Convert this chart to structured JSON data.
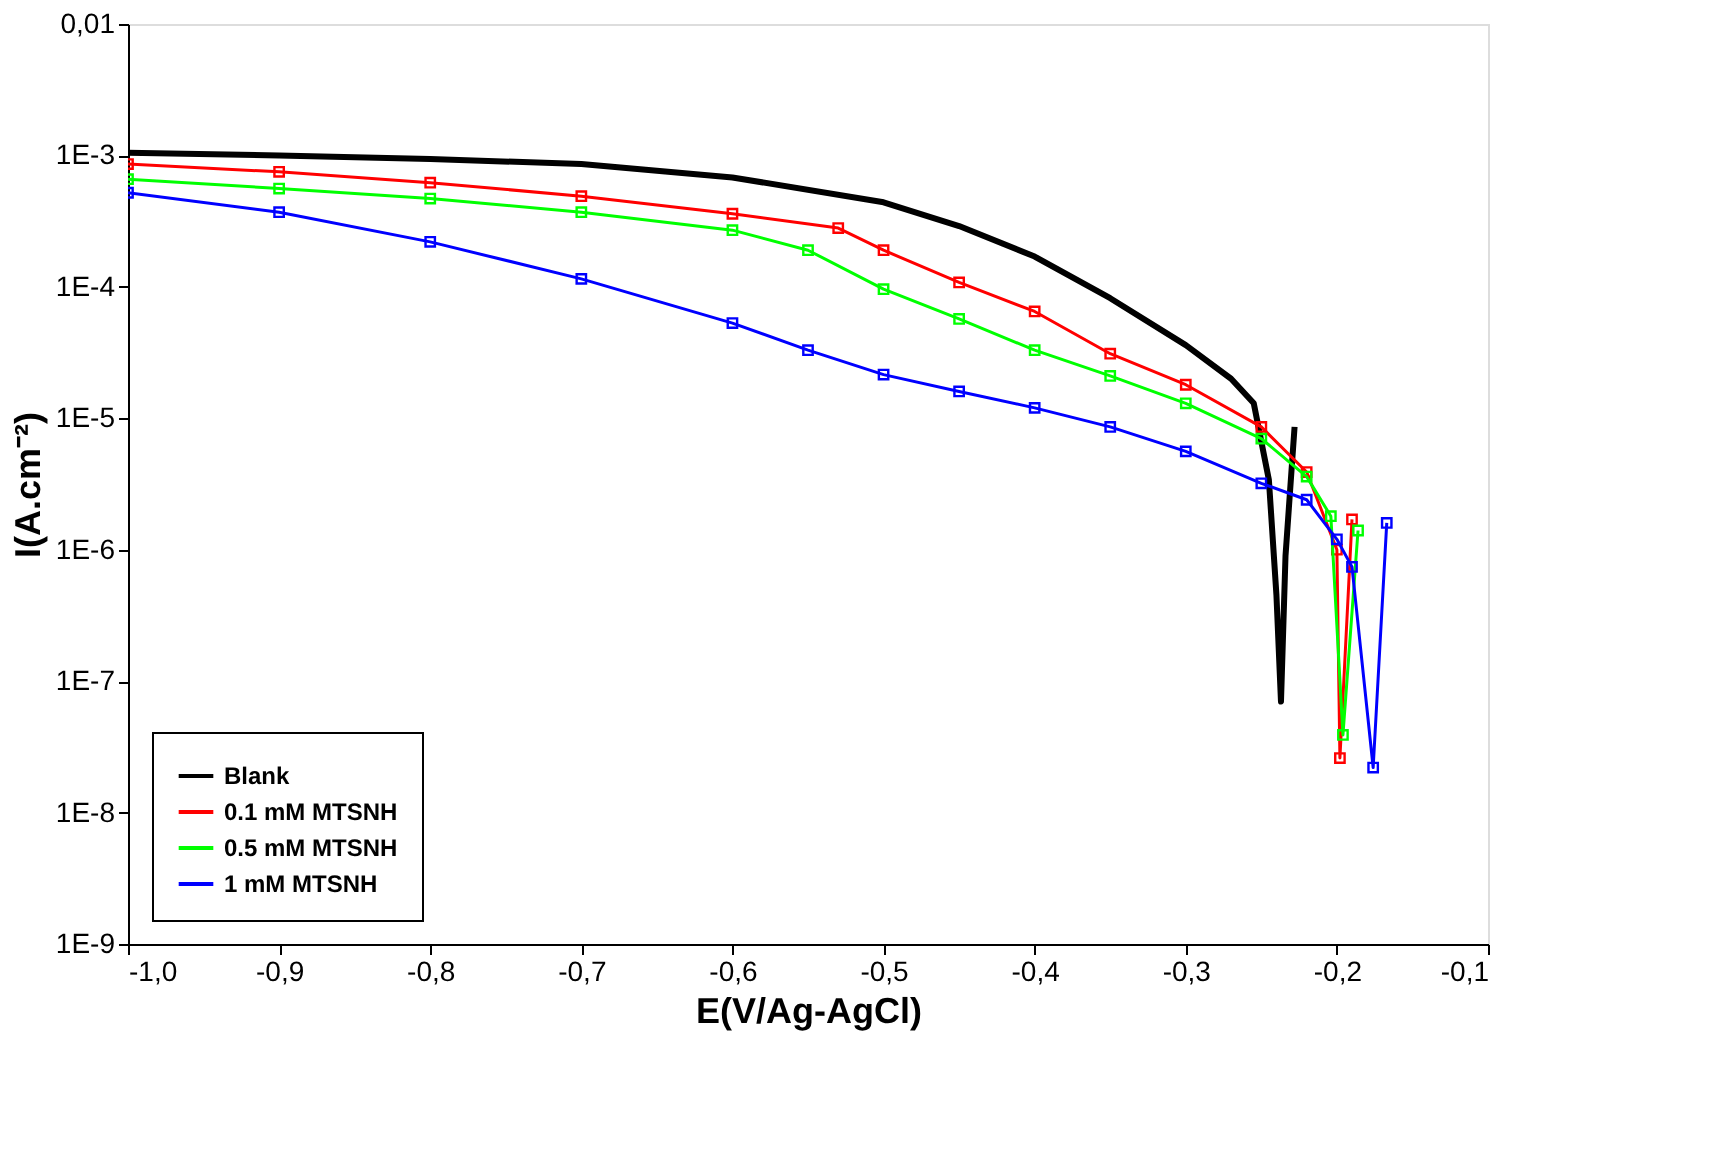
{
  "chart_data": {
    "type": "line",
    "xlabel": "E(V/Ag-AgCl)",
    "ylabel": "I(A.cm⁻²)",
    "log": "y",
    "grid": false,
    "legend": "bottom left",
    "xlim": [
      -1.0,
      -0.1
    ],
    "xticks": [
      {
        "value": -1.0,
        "label": "-1,0"
      },
      {
        "value": -0.9,
        "label": "-0,9"
      },
      {
        "value": -0.8,
        "label": "-0,8"
      },
      {
        "value": -0.7,
        "label": "-0,7"
      },
      {
        "value": -0.6,
        "label": "-0,6"
      },
      {
        "value": -0.5,
        "label": "-0,5"
      },
      {
        "value": -0.4,
        "label": "-0,4"
      },
      {
        "value": -0.3,
        "label": "-0,3"
      },
      {
        "value": -0.2,
        "label": "-0,2"
      },
      {
        "value": -0.1,
        "label": "-0,1"
      }
    ],
    "ylim": [
      1e-09,
      0.01
    ],
    "yticks": [
      {
        "value": 1e-09,
        "label": "1E-9"
      },
      {
        "value": 1e-08,
        "label": "1E-8"
      },
      {
        "value": 1e-07,
        "label": "1E-7"
      },
      {
        "value": 1e-06,
        "label": "1E-6"
      },
      {
        "value": 1e-05,
        "label": "1E-5"
      },
      {
        "value": 0.0001,
        "label": "1E-4"
      },
      {
        "value": 0.001,
        "label": "1E-3"
      },
      {
        "value": 0.01,
        "label": "0,01"
      }
    ],
    "series": [
      {
        "name": "Blank",
        "color": "#000000",
        "marker": "none",
        "x": [
          -1.0,
          -0.9,
          -0.8,
          -0.7,
          -0.6,
          -0.5,
          -0.45,
          -0.4,
          -0.35,
          -0.3,
          -0.27,
          -0.255,
          -0.245,
          -0.24,
          -0.237,
          -0.234,
          -0.228
        ],
        "values": [
          0.00105,
          0.001,
          0.00094,
          0.00086,
          0.00068,
          0.00044,
          0.00029,
          0.00017,
          8.2e-05,
          3.6e-05,
          2e-05,
          1.3e-05,
          3.4e-06,
          4.5e-07,
          7e-08,
          9e-07,
          8.6e-06
        ]
      },
      {
        "name": "0.1 mM MTSNH",
        "color": "#ff0000",
        "marker": "square",
        "x": [
          -1.0,
          -0.9,
          -0.8,
          -0.7,
          -0.6,
          -0.53,
          -0.5,
          -0.45,
          -0.4,
          -0.35,
          -0.3,
          -0.25,
          -0.22,
          -0.2,
          -0.198,
          -0.19
        ],
        "values": [
          0.00086,
          0.00075,
          0.00062,
          0.00049,
          0.00036,
          0.00028,
          0.00019,
          0.000108,
          6.5e-05,
          3.1e-05,
          1.8e-05,
          8.6e-06,
          3.9e-06,
          1e-06,
          2.6e-08,
          1.7e-06
        ]
      },
      {
        "name": "0.5 mM MTSNH",
        "color": "#00ff00",
        "marker": "square",
        "x": [
          -1.0,
          -0.9,
          -0.8,
          -0.7,
          -0.6,
          -0.55,
          -0.5,
          -0.45,
          -0.4,
          -0.35,
          -0.3,
          -0.25,
          -0.22,
          -0.204,
          -0.196,
          -0.186
        ],
        "values": [
          0.00066,
          0.00056,
          0.00047,
          0.00037,
          0.00027,
          0.00019,
          9.6e-05,
          5.7e-05,
          3.3e-05,
          2.1e-05,
          1.3e-05,
          7e-06,
          3.6e-06,
          1.8e-06,
          3.9e-08,
          1.4e-06
        ]
      },
      {
        "name": "1 mM MTSNH",
        "color": "#0000ff",
        "marker": "square",
        "x": [
          -1.0,
          -0.9,
          -0.8,
          -0.7,
          -0.6,
          -0.55,
          -0.5,
          -0.45,
          -0.4,
          -0.35,
          -0.3,
          -0.25,
          -0.22,
          -0.2,
          -0.19,
          -0.176,
          -0.167
        ],
        "values": [
          0.00052,
          0.00037,
          0.00022,
          0.000115,
          5.3e-05,
          3.3e-05,
          2.15e-05,
          1.6e-05,
          1.2e-05,
          8.6e-06,
          5.6e-06,
          3.2e-06,
          2.4e-06,
          1.2e-06,
          7.4e-07,
          2.2e-08,
          1.6e-06
        ]
      }
    ]
  }
}
